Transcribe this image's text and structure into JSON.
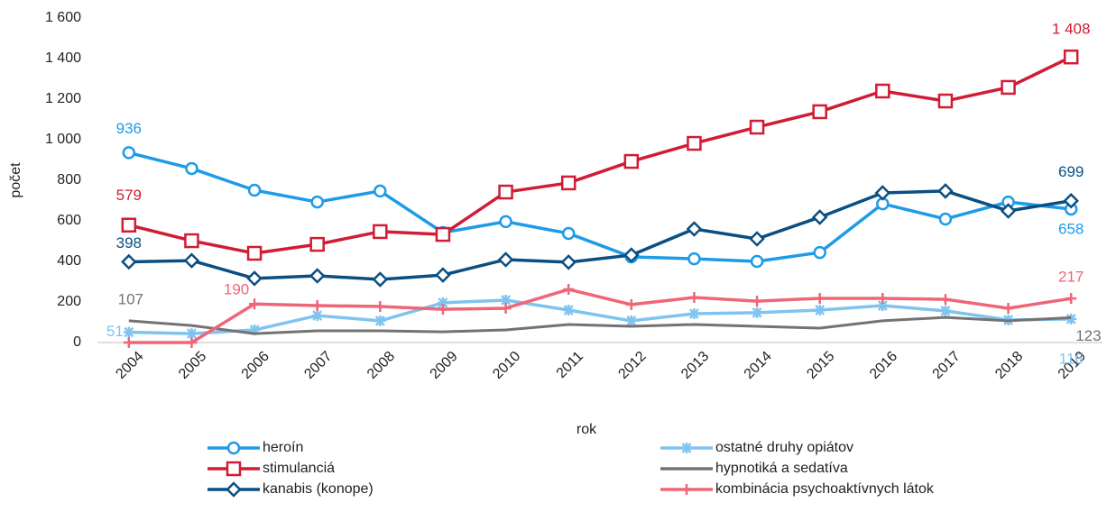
{
  "chart_data": {
    "type": "line",
    "ylabel": "počet",
    "xlabel": "rok",
    "categories": [
      "2004",
      "2005",
      "2006",
      "2007",
      "2008",
      "2009",
      "2010",
      "2011",
      "2012",
      "2013",
      "2014",
      "2015",
      "2016",
      "2017",
      "2018",
      "2019"
    ],
    "ylim": [
      0,
      1600
    ],
    "yticks": [
      0,
      200,
      400,
      600,
      800,
      {
        "value": 1000,
        "label": "1 000"
      },
      {
        "value": 1200,
        "label": "1 200"
      },
      {
        "value": 1400,
        "label": "1 400"
      },
      {
        "value": 1600,
        "label": "1 600"
      }
    ],
    "grid": false,
    "legend": "bottom",
    "series": [
      {
        "name": "heroín",
        "color": "#1e9be8",
        "marker": "circle",
        "values": [
          936,
          858,
          751,
          693,
          747,
          542,
          596,
          538,
          422,
          413,
          400,
          444,
          684,
          609,
          693,
          658
        ],
        "value_labels": [
          "936",
          null,
          null,
          null,
          null,
          null,
          null,
          null,
          null,
          null,
          null,
          null,
          null,
          null,
          null,
          "658"
        ]
      },
      {
        "name": "ostatné druhy opiátov",
        "color": "#7fc4ef",
        "marker": "asterisk",
        "values": [
          51,
          44,
          62,
          133,
          107,
          196,
          209,
          160,
          107,
          142,
          147,
          160,
          182,
          156,
          111,
          116
        ],
        "value_labels": [
          "51",
          null,
          null,
          null,
          null,
          null,
          null,
          null,
          null,
          null,
          null,
          null,
          null,
          null,
          null,
          "116"
        ]
      },
      {
        "name": "stimulanciá",
        "color": "#d01c34",
        "marker": "square",
        "values": [
          579,
          502,
          440,
          484,
          547,
          533,
          742,
          787,
          893,
          982,
          1062,
          1138,
          1240,
          1191,
          1258,
          1408
        ],
        "value_labels": [
          "579",
          null,
          null,
          null,
          null,
          null,
          null,
          null,
          null,
          null,
          null,
          null,
          null,
          null,
          null,
          "1 408"
        ]
      },
      {
        "name": "hypnotiká a sedatíva",
        "color": "#737373",
        "marker": "none",
        "values": [
          107,
          84,
          44,
          58,
          58,
          53,
          62,
          89,
          80,
          89,
          80,
          71,
          107,
          124,
          107,
          123
        ],
        "value_labels": [
          "107",
          null,
          null,
          null,
          null,
          null,
          null,
          null,
          null,
          null,
          null,
          null,
          null,
          null,
          null,
          "123"
        ]
      },
      {
        "name": "kanabis (konope)",
        "color": "#0b4f82",
        "marker": "diamond",
        "values": [
          398,
          404,
          316,
          329,
          311,
          333,
          409,
          396,
          431,
          560,
          511,
          618,
          738,
          747,
          649,
          699
        ],
        "value_labels": [
          "398",
          null,
          null,
          null,
          null,
          null,
          null,
          null,
          null,
          null,
          null,
          null,
          null,
          null,
          null,
          "699"
        ]
      },
      {
        "name": "kombinácia psychoaktívnych látok",
        "color": "#ee6677",
        "marker": "plus",
        "values": [
          0,
          0,
          190,
          182,
          178,
          164,
          169,
          262,
          187,
          222,
          204,
          218,
          218,
          213,
          169,
          217
        ],
        "value_labels": [
          null,
          null,
          "190",
          null,
          null,
          null,
          null,
          null,
          null,
          null,
          null,
          null,
          null,
          null,
          null,
          "217"
        ]
      }
    ]
  }
}
